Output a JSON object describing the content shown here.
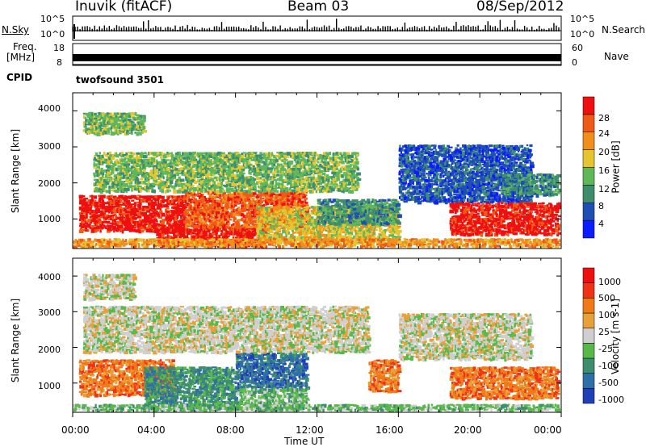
{
  "header": {
    "station": "Inuvik (fitACF)",
    "beam": "Beam 03",
    "date": "08/Sep/2012"
  },
  "nsky_panel": {
    "left_label": "N.Sky",
    "right_label": "N.Search",
    "left_ticks": [
      "10^5",
      "10^0"
    ],
    "right_ticks": [
      "10^5",
      "10^0"
    ]
  },
  "freq_panel": {
    "left_label_line1": "Freq.",
    "left_label_line2": "[MHz]",
    "left_ticks": [
      "18",
      "8"
    ],
    "right_label": "Nave",
    "right_ticks": [
      "60",
      "0"
    ]
  },
  "cpid_panel": {
    "label": "CPID",
    "value": "twofsound 3501"
  },
  "power_panel": {
    "ylabel": "Slant Range [km]",
    "yticks": [
      "4000",
      "3000",
      "2000",
      "1000"
    ],
    "colorbar_label": "Power [dB]",
    "colorbar_ticks": [
      "28",
      "24",
      "20",
      "16",
      "12",
      "8",
      "4"
    ],
    "colors": [
      "#0b1cff",
      "#1f4fb5",
      "#3e8e6e",
      "#5fb75a",
      "#e5c52f",
      "#f08f1c",
      "#ef5a16",
      "#ee1010"
    ]
  },
  "velocity_panel": {
    "ylabel": "Slant Range [km]",
    "yticks": [
      "4000",
      "3000",
      "2000",
      "1000"
    ],
    "colorbar_label": "Velocity [m s-1]",
    "colorbar_ticks": [
      "1000",
      "500",
      "100",
      "25",
      "-25",
      "-100",
      "-500",
      "-1000"
    ],
    "colors": [
      "#1f3fb5",
      "#2f6fa8",
      "#3e8e6e",
      "#58b94a",
      "#cfcfcf",
      "#e6a13a",
      "#f07a18",
      "#ee3316",
      "#ee1010"
    ]
  },
  "xaxis": {
    "ticks": [
      "00:00",
      "04:00",
      "08:00",
      "12:00",
      "16:00",
      "20:00",
      "00:00"
    ],
    "label": "Time UT"
  },
  "chart_data": {
    "type": "heatmap",
    "x_unit": "hours UT",
    "y_unit": "km",
    "xlim": [
      0,
      24
    ],
    "ylim": [
      180,
      4500
    ],
    "power_features": [
      {
        "x0": 0.3,
        "x1": 5.5,
        "y0": 700,
        "y1": 1700,
        "level": 7
      },
      {
        "x0": 4.0,
        "x1": 9.5,
        "y0": 250,
        "y1": 900,
        "level": 7
      },
      {
        "x0": 5.5,
        "x1": 11.5,
        "y0": 800,
        "y1": 1800,
        "level": 6
      },
      {
        "x0": 1.0,
        "x1": 14.0,
        "y0": 1800,
        "y1": 2900,
        "level": 3
      },
      {
        "x0": 9.0,
        "x1": 16.0,
        "y0": 400,
        "y1": 1400,
        "level": 4
      },
      {
        "x0": 12.0,
        "x1": 16.0,
        "y0": 900,
        "y1": 1600,
        "level": 2
      },
      {
        "x0": 16.0,
        "x1": 22.5,
        "y0": 1500,
        "y1": 3100,
        "level": 1
      },
      {
        "x0": 18.5,
        "x1": 24.0,
        "y0": 600,
        "y1": 1500,
        "level": 7
      },
      {
        "x0": 21.0,
        "x1": 24.0,
        "y0": 1700,
        "y1": 2300,
        "level": 2
      },
      {
        "x0": 0.5,
        "x1": 3.5,
        "y0": 3400,
        "y1": 4000,
        "level": 3
      },
      {
        "x0": 0.0,
        "x1": 24.0,
        "y0": 200,
        "y1": 500,
        "level": 5
      }
    ],
    "velocity_features": [
      {
        "x0": 0.3,
        "x1": 5.0,
        "y0": 700,
        "y1": 1700,
        "level": 6
      },
      {
        "x0": 3.5,
        "x1": 8.0,
        "y0": 300,
        "y1": 1500,
        "level": 2
      },
      {
        "x0": 8.0,
        "x1": 11.5,
        "y0": 900,
        "y1": 1900,
        "level": 1
      },
      {
        "x0": 8.0,
        "x1": 11.5,
        "y0": 400,
        "y1": 900,
        "level": 3
      },
      {
        "x0": 0.5,
        "x1": 14.5,
        "y0": 1900,
        "y1": 3200,
        "level": 4
      },
      {
        "x0": 14.5,
        "x1": 16.0,
        "y0": 800,
        "y1": 1700,
        "level": 6
      },
      {
        "x0": 16.0,
        "x1": 22.5,
        "y0": 1700,
        "y1": 3000,
        "level": 4
      },
      {
        "x0": 18.5,
        "x1": 24.0,
        "y0": 600,
        "y1": 1500,
        "level": 6
      },
      {
        "x0": 0.5,
        "x1": 3.0,
        "y0": 3400,
        "y1": 4100,
        "level": 4
      },
      {
        "x0": 0.0,
        "x1": 24.0,
        "y0": 200,
        "y1": 450,
        "level": 3
      }
    ]
  }
}
